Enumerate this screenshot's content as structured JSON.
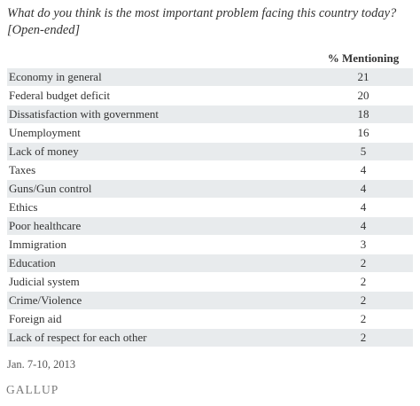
{
  "title": "What do you think is the most important problem facing this country today? [Open-ended]",
  "column_header": "% Mentioning",
  "footnote": "Jan. 7-10, 2013",
  "brand": "GALLUP",
  "colors": {
    "row_stripe": "#e8ebed",
    "text": "#333333"
  },
  "chart_data": {
    "type": "table",
    "columns": [
      "",
      "% Mentioning"
    ],
    "categories": [
      "Economy in general",
      "Federal budget deficit",
      "Dissatisfaction with government",
      "Unemployment",
      "Lack of money",
      "Taxes",
      "Guns/Gun control",
      "Ethics",
      "Poor healthcare",
      "Immigration",
      "Education",
      "Judicial system",
      "Crime/Violence",
      "Foreign aid",
      "Lack of respect for each other"
    ],
    "values": [
      21,
      20,
      18,
      16,
      5,
      4,
      4,
      4,
      4,
      3,
      2,
      2,
      2,
      2,
      2
    ]
  }
}
